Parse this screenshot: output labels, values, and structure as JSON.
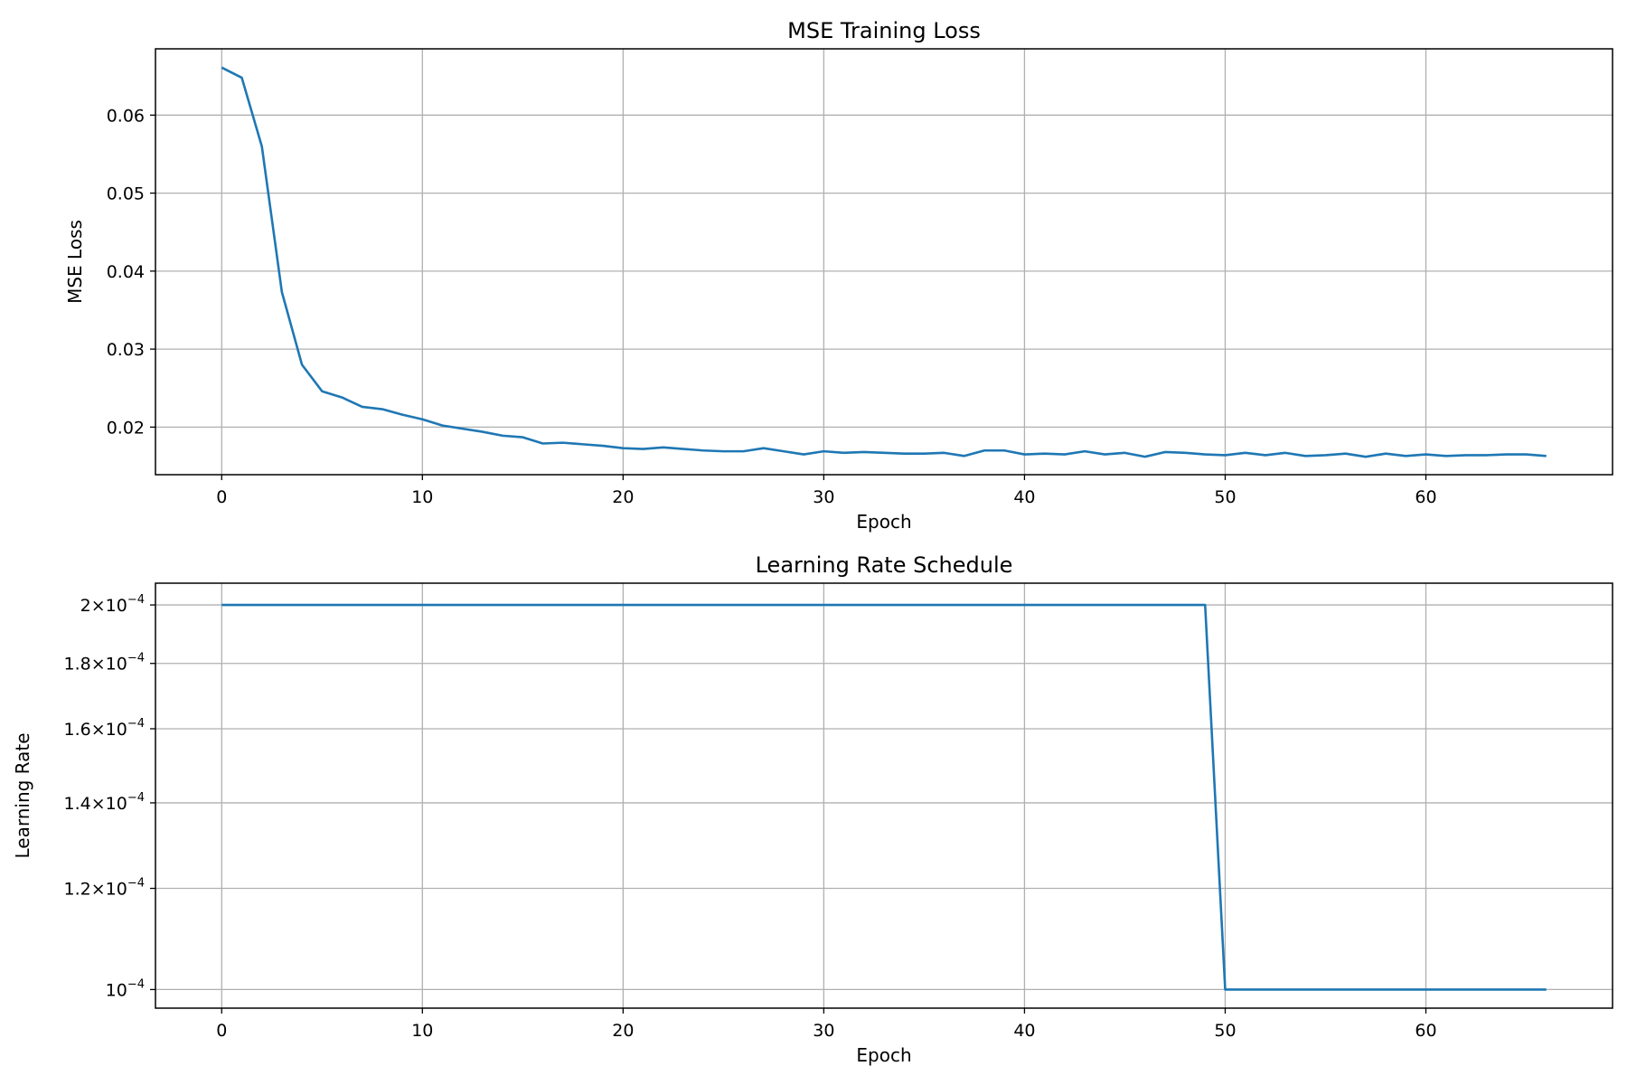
{
  "chart_data": [
    {
      "type": "line",
      "title": "MSE Training Loss",
      "xlabel": "Epoch",
      "ylabel": "MSE Loss",
      "xlim": [
        -3.3,
        69.3
      ],
      "ylim": [
        0.0139,
        0.0685
      ],
      "grid": true,
      "x_ticks": [
        0,
        10,
        20,
        30,
        40,
        50,
        60
      ],
      "x_tick_labels": [
        "0",
        "10",
        "20",
        "30",
        "40",
        "50",
        "60"
      ],
      "y_ticks": [
        0.02,
        0.03,
        0.04,
        0.05,
        0.06
      ],
      "y_tick_labels": [
        "0.02",
        "0.03",
        "0.04",
        "0.05",
        "0.06"
      ],
      "series": [
        {
          "color": "#1f77b4",
          "x": [
            0,
            1,
            2,
            3,
            4,
            5,
            6,
            7,
            8,
            9,
            10,
            11,
            12,
            13,
            14,
            15,
            16,
            17,
            18,
            19,
            20,
            21,
            22,
            23,
            24,
            25,
            26,
            27,
            28,
            29,
            30,
            31,
            32,
            33,
            34,
            35,
            36,
            37,
            38,
            39,
            40,
            41,
            42,
            43,
            44,
            45,
            46,
            47,
            48,
            49,
            50,
            51,
            52,
            53,
            54,
            55,
            56,
            57,
            58,
            59,
            60,
            61,
            62,
            63,
            64,
            65,
            66
          ],
          "y": [
            0.0661,
            0.0648,
            0.056,
            0.0373,
            0.028,
            0.0246,
            0.0238,
            0.0226,
            0.0223,
            0.0216,
            0.021,
            0.0202,
            0.0198,
            0.0194,
            0.0189,
            0.0187,
            0.0179,
            0.018,
            0.0178,
            0.0176,
            0.0173,
            0.0172,
            0.0174,
            0.0172,
            0.017,
            0.0169,
            0.0169,
            0.0173,
            0.0169,
            0.0165,
            0.0169,
            0.0167,
            0.0168,
            0.0167,
            0.0166,
            0.0166,
            0.0167,
            0.0163,
            0.017,
            0.017,
            0.0165,
            0.0166,
            0.0165,
            0.0169,
            0.0165,
            0.0167,
            0.0162,
            0.0168,
            0.0167,
            0.0165,
            0.0164,
            0.0167,
            0.0164,
            0.0167,
            0.0163,
            0.0164,
            0.0166,
            0.0162,
            0.0166,
            0.0163,
            0.0165,
            0.0163,
            0.0164,
            0.0164,
            0.0165,
            0.0165,
            0.0163
          ]
        }
      ]
    },
    {
      "type": "line",
      "title": "Learning Rate Schedule",
      "xlabel": "Epoch",
      "ylabel": "Learning Rate",
      "yscale": "log",
      "xlim": [
        -3.3,
        69.3
      ],
      "ylim": [
        9.67e-05,
        0.000208
      ],
      "grid": true,
      "x_ticks": [
        0,
        10,
        20,
        30,
        40,
        50,
        60
      ],
      "x_tick_labels": [
        "0",
        "10",
        "20",
        "30",
        "40",
        "50",
        "60"
      ],
      "y_ticks": [
        {
          "value": 0.0002,
          "mantissa": "2",
          "exponent": "−4"
        },
        {
          "value": 0.00018,
          "mantissa": "1.8",
          "exponent": "−4"
        },
        {
          "value": 0.00016,
          "mantissa": "1.6",
          "exponent": "−4"
        },
        {
          "value": 0.00014,
          "mantissa": "1.4",
          "exponent": "−4"
        },
        {
          "value": 0.00012,
          "mantissa": "1.2",
          "exponent": "−4"
        },
        {
          "value": 0.0001,
          "mantissa": "",
          "exponent": "−4"
        }
      ],
      "times_sign": "×",
      "base": "10",
      "series": [
        {
          "color": "#1f77b4",
          "x": [
            0,
            49,
            50,
            66
          ],
          "y": [
            0.0002,
            0.0002,
            0.0001,
            0.0001
          ]
        }
      ]
    }
  ]
}
